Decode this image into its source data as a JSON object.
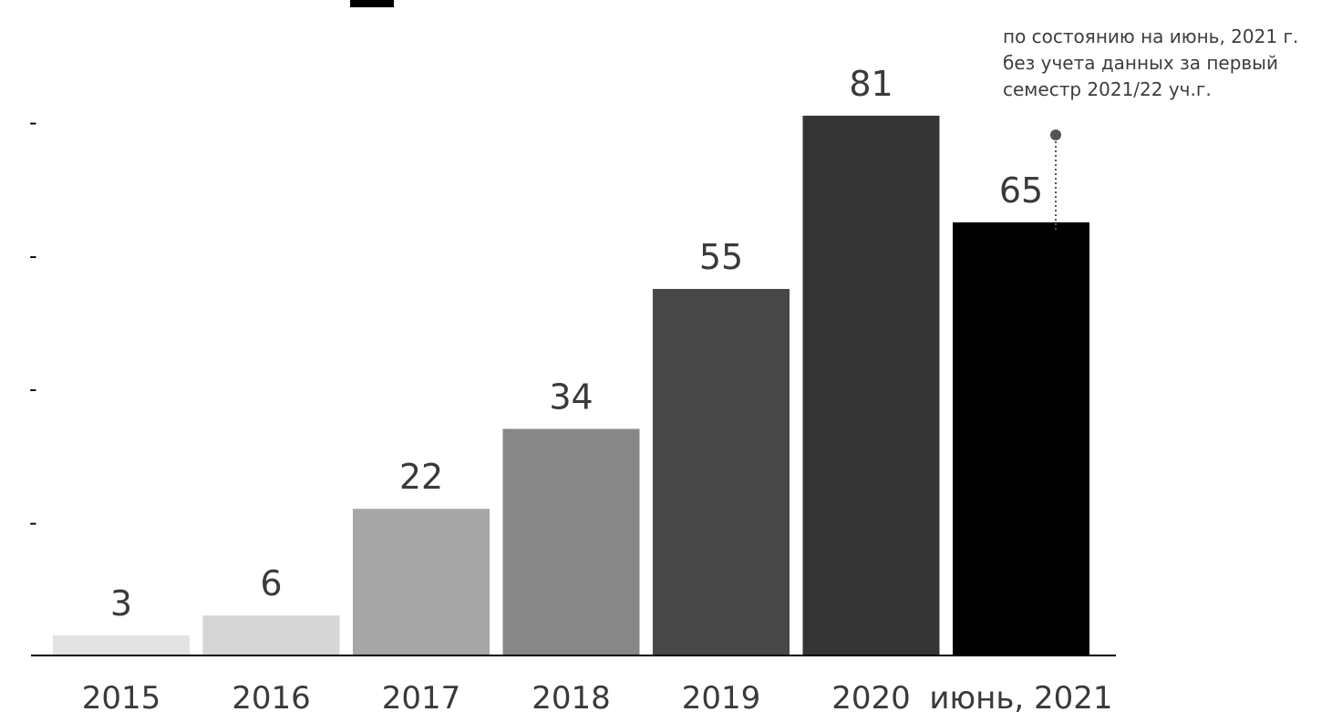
{
  "chart_data": {
    "type": "bar",
    "categories": [
      "2015",
      "2016",
      "2017",
      "2018",
      "2019",
      "2020",
      "июнь, 2021"
    ],
    "values": [
      3,
      6,
      22,
      34,
      55,
      81,
      65
    ],
    "value_labels": [
      "3",
      "6",
      "22",
      "34",
      "55",
      "81",
      "65"
    ],
    "bar_colors": [
      "#e3e3e3",
      "#d6d6d6",
      "#a6a6a6",
      "#878787",
      "#474747",
      "#353535",
      "#000000"
    ],
    "y_tick_labels": [
      "-",
      "-",
      "-",
      "-"
    ],
    "y_tick_values": [
      20,
      40,
      60,
      80
    ],
    "ylim": [
      0,
      92
    ],
    "annotation": {
      "category": "июнь, 2021",
      "lines": [
        "по состоянию на июнь, 2021 г.",
        "без учета данных за первый",
        "семестр 2021/22 уч.г."
      ]
    },
    "title": "",
    "xlabel": "",
    "ylabel": "",
    "grid": false
  }
}
